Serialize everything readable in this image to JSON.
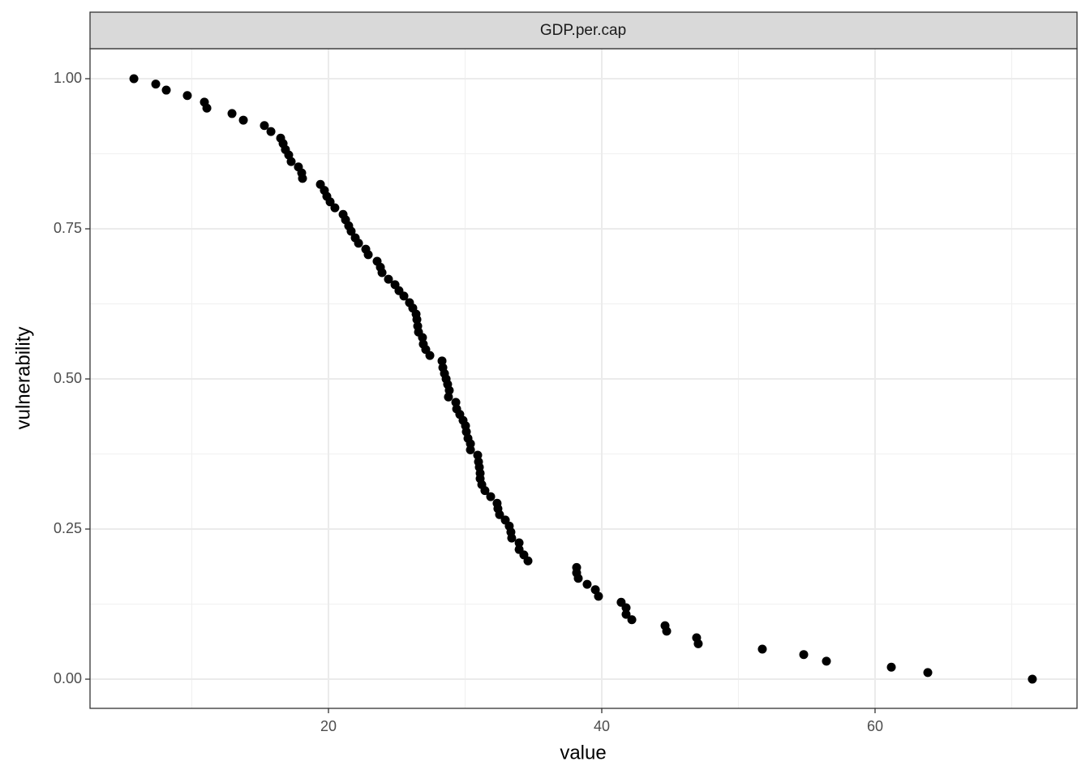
{
  "chart_data": {
    "type": "scatter",
    "facet_label": "GDP.per.cap",
    "x_label": "value",
    "y_label": "vulnerability",
    "color": "#000000",
    "grid": true,
    "xlim": [
      2.55,
      74.78
    ],
    "ylim": [
      -0.0486,
      1.05
    ],
    "xticks": [
      20,
      40,
      60
    ],
    "x_minor_ticks": [
      10,
      30,
      50,
      70
    ],
    "yticks": [
      {
        "value": 0,
        "label": "0.00"
      },
      {
        "value": 0.25,
        "label": "0.25"
      },
      {
        "value": 0.5,
        "label": "0.50"
      },
      {
        "value": 0.75,
        "label": "0.75"
      },
      {
        "value": 1,
        "label": "1.00"
      }
    ],
    "y_minor_ticks": [
      0.125,
      0.375,
      0.625,
      0.875
    ],
    "x": [
      5.76,
      7.36,
      8.13,
      9.67,
      10.92,
      11.1,
      12.94,
      13.77,
      15.31,
      15.79,
      16.5,
      16.68,
      16.85,
      17.09,
      17.27,
      17.8,
      18.04,
      18.1,
      19.41,
      19.7,
      19.88,
      20.12,
      20.47,
      21.07,
      21.25,
      21.48,
      21.66,
      21.96,
      22.2,
      22.73,
      22.91,
      23.56,
      23.8,
      23.92,
      24.39,
      24.87,
      25.16,
      25.52,
      25.93,
      26.17,
      26.41,
      26.47,
      26.53,
      26.59,
      26.88,
      26.94,
      27.12,
      27.42,
      28.31,
      28.37,
      28.49,
      28.61,
      28.72,
      28.84,
      28.78,
      29.32,
      29.38,
      29.61,
      29.85,
      30.03,
      30.09,
      30.21,
      30.39,
      30.39,
      30.92,
      30.98,
      31.04,
      31.1,
      31.1,
      31.22,
      31.45,
      31.87,
      32.34,
      32.4,
      32.52,
      32.94,
      33.23,
      33.35,
      33.41,
      33.95,
      33.95,
      34.3,
      34.6,
      38.16,
      38.16,
      38.28,
      38.93,
      39.53,
      39.76,
      41.42,
      41.78,
      41.78,
      42.2,
      44.63,
      44.75,
      46.94,
      47.06,
      51.75,
      54.78,
      56.44,
      61.19,
      63.86,
      71.51
    ],
    "y": [
      1.0,
      0.991,
      0.981,
      0.972,
      0.961,
      0.951,
      0.942,
      0.931,
      0.922,
      0.912,
      0.901,
      0.892,
      0.882,
      0.873,
      0.862,
      0.853,
      0.843,
      0.834,
      0.824,
      0.814,
      0.804,
      0.795,
      0.785,
      0.774,
      0.765,
      0.755,
      0.746,
      0.735,
      0.726,
      0.716,
      0.707,
      0.696,
      0.686,
      0.677,
      0.666,
      0.657,
      0.647,
      0.638,
      0.627,
      0.618,
      0.608,
      0.599,
      0.588,
      0.578,
      0.569,
      0.558,
      0.549,
      0.539,
      0.53,
      0.519,
      0.509,
      0.5,
      0.491,
      0.481,
      0.47,
      0.461,
      0.45,
      0.441,
      0.431,
      0.422,
      0.412,
      0.401,
      0.392,
      0.382,
      0.373,
      0.362,
      0.353,
      0.343,
      0.334,
      0.324,
      0.314,
      0.304,
      0.293,
      0.284,
      0.274,
      0.265,
      0.255,
      0.245,
      0.235,
      0.227,
      0.216,
      0.207,
      0.197,
      0.186,
      0.177,
      0.168,
      0.158,
      0.149,
      0.138,
      0.128,
      0.119,
      0.108,
      0.099,
      0.089,
      0.08,
      0.069,
      0.059,
      0.05,
      0.041,
      0.03,
      0.02,
      0.011,
      0
    ]
  }
}
